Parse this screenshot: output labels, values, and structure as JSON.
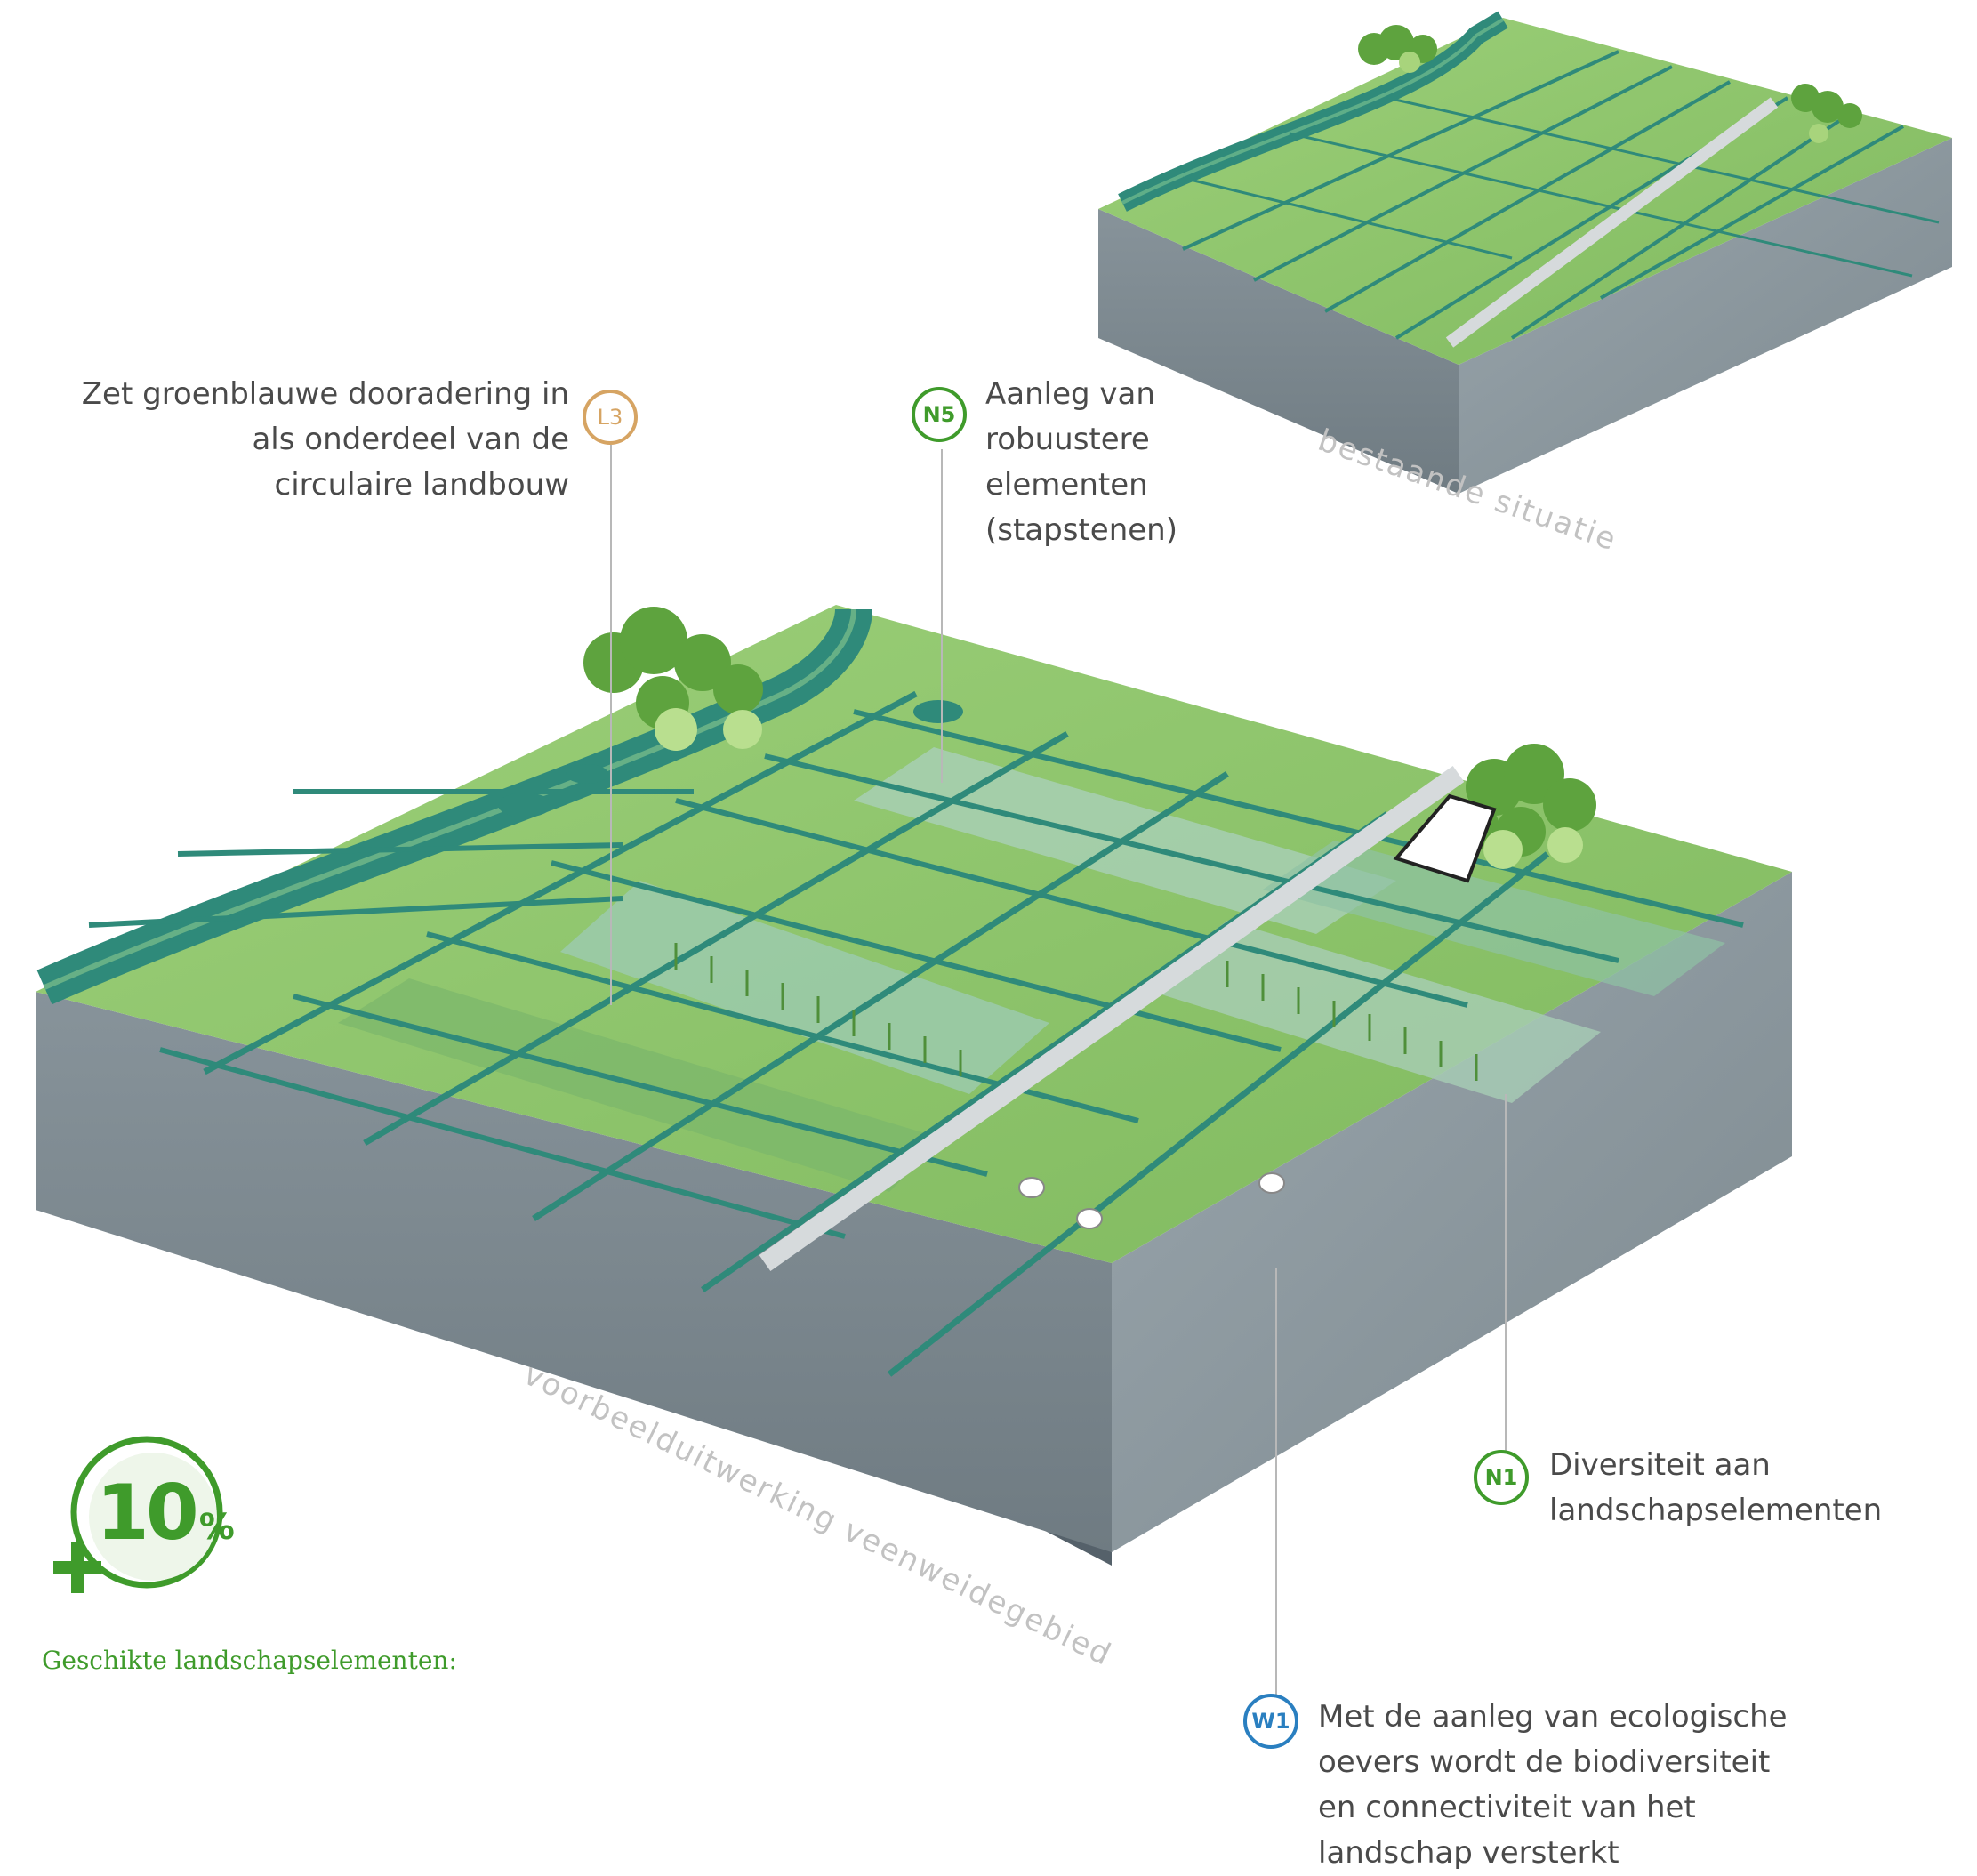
{
  "scenes": {
    "existing_caption": "bestaande situatie",
    "example_caption": "voorbeelduitwerking veenweidegebied"
  },
  "callouts": {
    "l3": {
      "badge": "L3",
      "text": [
        "Zet groenblauwe dooradering in",
        "als onderdeel van de",
        "circulaire landbouw"
      ]
    },
    "n5": {
      "badge": "N5",
      "text": [
        "Aanleg van",
        "robuustere",
        "elementen",
        "(stapstenen)"
      ]
    },
    "n1": {
      "badge": "N1",
      "text": [
        "Diversiteit aan",
        "landschapselementen"
      ]
    },
    "w1": {
      "badge": "W1",
      "text": [
        "Met de aanleg van ecologische",
        "oevers wordt de biodiversiteit",
        "en connectiviteit van het",
        "landschap versterkt"
      ]
    }
  },
  "badge_10": {
    "number": "10",
    "unit": "%",
    "prefix": "+"
  },
  "geschikte_label": "Geschikte landschapselementen:",
  "colors": {
    "green_accent": "#3f9b2b",
    "orange_accent": "#d6a463",
    "blue_accent": "#2a7fc0",
    "field": "#8dc46a",
    "ditch": "#2f8a7a",
    "block_side": "#7f8b91"
  }
}
